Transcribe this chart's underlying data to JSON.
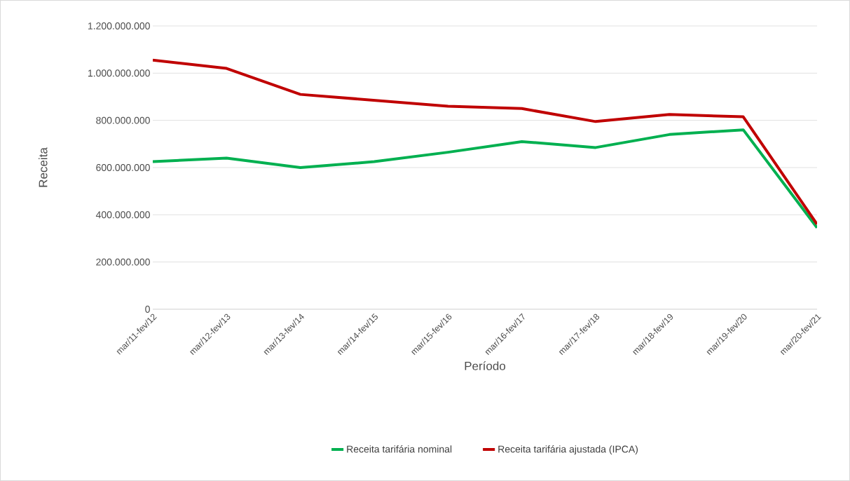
{
  "chart_data": {
    "type": "line",
    "xlabel": "Período",
    "ylabel": "Receita",
    "categories": [
      "mar/11-fev/12",
      "mar/12-fev/13",
      "mar/13-fev/14",
      "mar/14-fev/15",
      "mar/15-fev/16",
      "mar/16-fev/17",
      "mar/17-fev/18",
      "mar/18-fev/19",
      "mar/19-fev/20",
      "mar/20-fev/21"
    ],
    "series": [
      {
        "name": "Receita tarifária nominal",
        "color": "#00b050",
        "values": [
          625000000,
          640000000,
          600000000,
          625000000,
          665000000,
          710000000,
          685000000,
          740000000,
          760000000,
          345000000
        ]
      },
      {
        "name": "Receita tarifária ajustada (IPCA)",
        "color": "#c00000",
        "values": [
          1055000000,
          1020000000,
          910000000,
          885000000,
          860000000,
          850000000,
          795000000,
          825000000,
          815000000,
          360000000
        ]
      }
    ],
    "ylim": [
      0,
      1200000000
    ],
    "yticks": [
      0,
      {
        "value": 200000000,
        "label": "200.000.000"
      },
      {
        "value": 400000000,
        "label": "400.000.000"
      },
      {
        "value": 600000000,
        "label": "600.000.000"
      },
      {
        "value": 800000000,
        "label": "800.000.000"
      },
      {
        "value": 1000000000,
        "label": "1.000.000.000"
      },
      {
        "value": 1200000000,
        "label": "1.200.000.000"
      }
    ],
    "grid": "y",
    "legend": "bottom",
    "marker": "none",
    "line_style": "solid"
  }
}
